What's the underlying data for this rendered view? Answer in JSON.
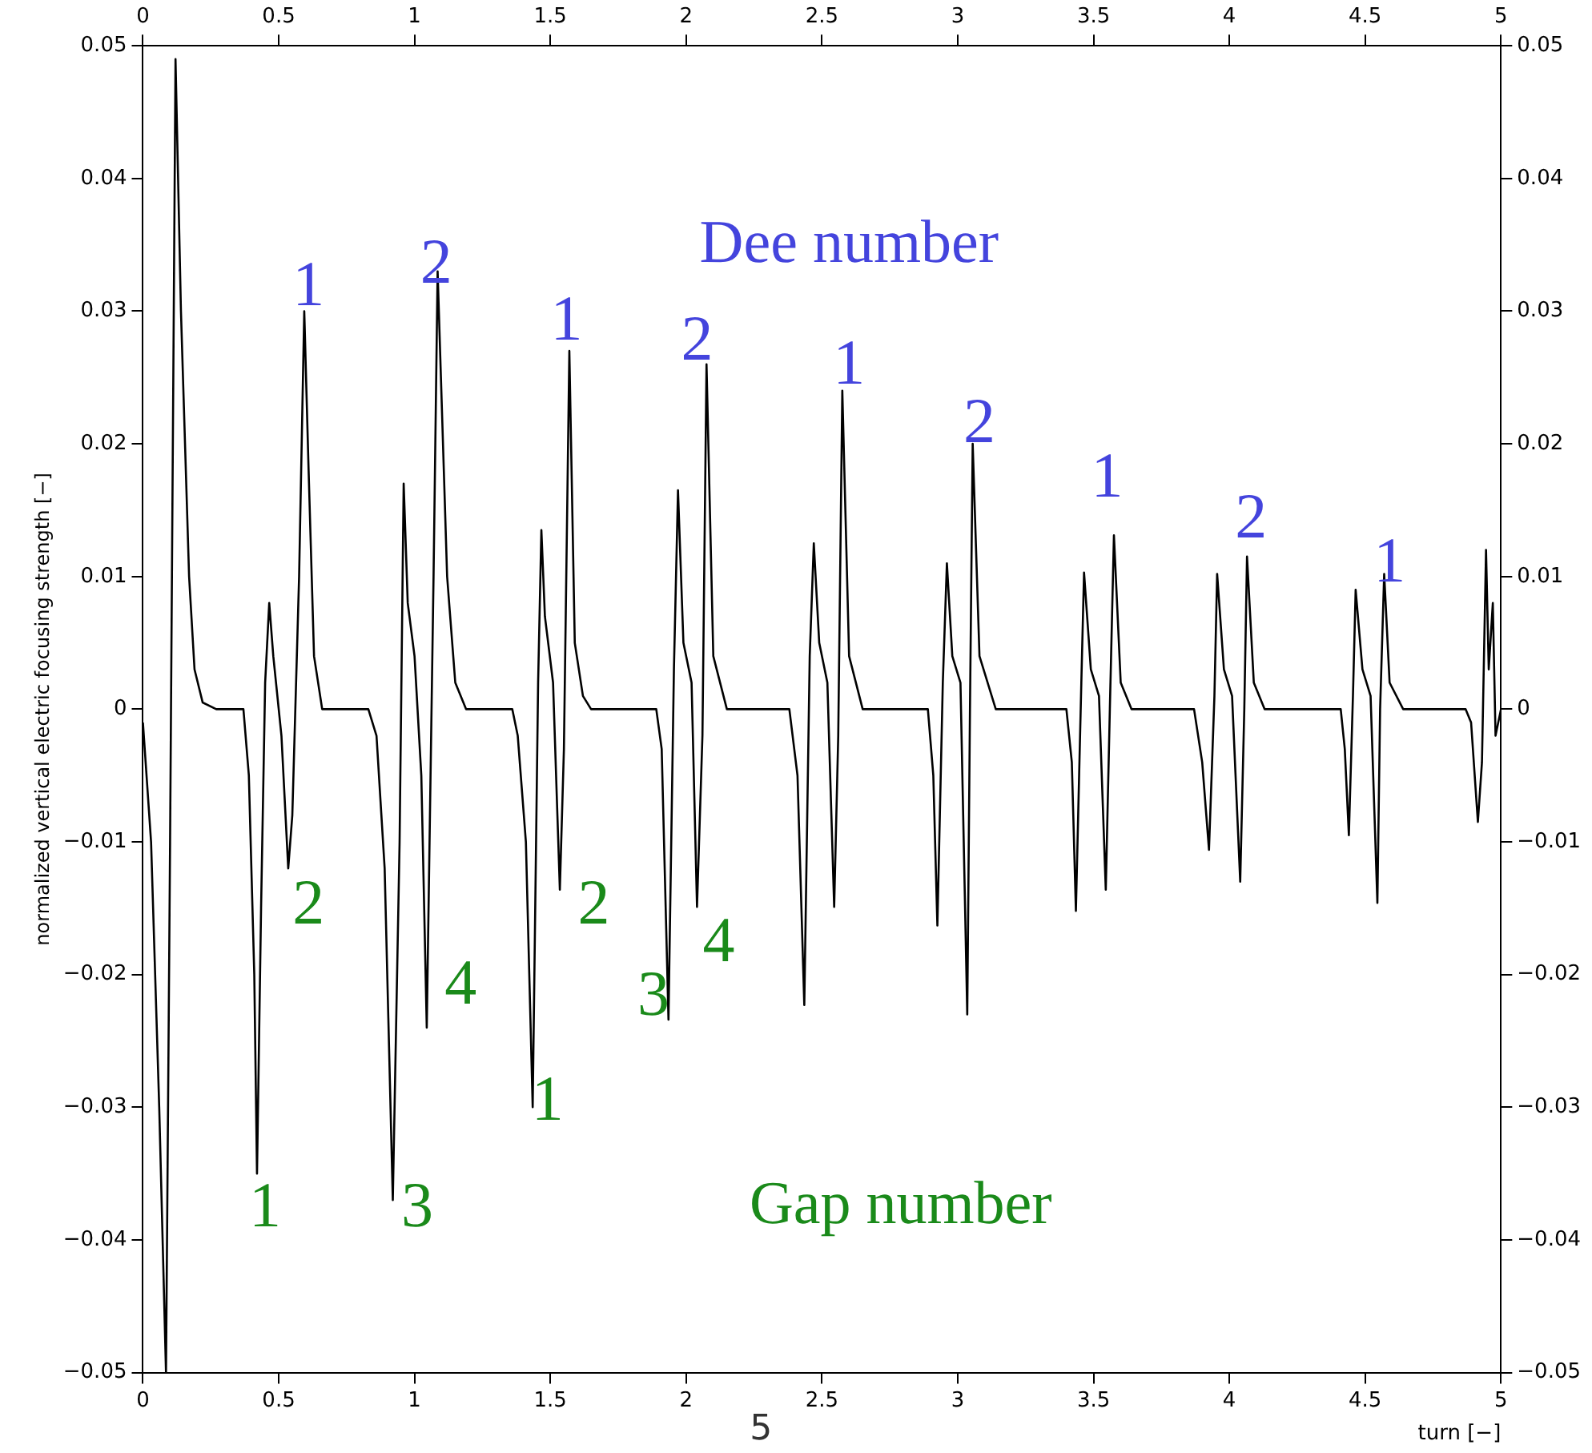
{
  "chart_data": {
    "type": "line",
    "xlabel": "turn [−]",
    "ylabel": "normalized vertical electric focusing strength [−]",
    "xlim": [
      0,
      5
    ],
    "xticks": [
      0,
      0.5,
      1,
      1.5,
      2,
      2.5,
      3,
      3.5,
      4,
      4.5,
      5
    ],
    "x2lim": [
      0,
      5
    ],
    "x2ticks": [
      0,
      0.5,
      1,
      1.5,
      2,
      2.5,
      3,
      3.5,
      4,
      4.5,
      5
    ],
    "ylim": [
      -0.05,
      0.05
    ],
    "yticks": [
      {
        "value": -0.05,
        "label": "−0.05"
      },
      {
        "value": -0.04,
        "label": "−0.04"
      },
      {
        "value": -0.03,
        "label": "−0.03"
      },
      {
        "value": -0.02,
        "label": "−0.02"
      },
      {
        "value": -0.01,
        "label": "−0.01"
      },
      0,
      0.01,
      0.02,
      0.03,
      0.04,
      0.05
    ],
    "y2lim": [
      -0.05,
      0.05
    ],
    "y2ticks": [
      {
        "value": -0.05,
        "label": "−0.05"
      },
      {
        "value": -0.04,
        "label": "−0.04"
      },
      {
        "value": -0.03,
        "label": "−0.03"
      },
      {
        "value": -0.02,
        "label": "−0.02"
      },
      {
        "value": -0.01,
        "label": "−0.01"
      },
      0,
      0.01,
      0.02,
      0.03,
      0.04,
      0.05
    ],
    "grid": false,
    "marker": "none",
    "line_style": "solid",
    "series": [
      {
        "color": "#000000",
        "x": [
          0,
          0.03,
          0.06,
          0.085,
          0.1,
          0.12,
          0.14,
          0.17,
          0.19,
          0.22,
          0.27,
          0.37,
          0.39,
          0.41,
          0.42,
          0.435,
          0.45,
          0.465,
          0.48,
          0.51,
          0.535,
          0.55,
          0.575,
          0.594,
          0.61,
          0.63,
          0.66,
          0.83,
          0.86,
          0.89,
          0.92,
          0.945,
          0.96,
          0.975,
          1.0,
          1.025,
          1.045,
          1.07,
          1.085,
          1.12,
          1.15,
          1.19,
          1.36,
          1.38,
          1.41,
          1.435,
          1.455,
          1.467,
          1.48,
          1.51,
          1.535,
          1.55,
          1.57,
          1.59,
          1.62,
          1.65,
          1.89,
          1.91,
          1.935,
          1.955,
          1.97,
          1.99,
          2.02,
          2.04,
          2.06,
          2.075,
          2.1,
          2.15,
          2.38,
          2.41,
          2.435,
          2.455,
          2.47,
          2.49,
          2.52,
          2.545,
          2.56,
          2.575,
          2.6,
          2.65,
          2.89,
          2.91,
          2.925,
          2.945,
          2.96,
          2.98,
          3.01,
          3.035,
          3.045,
          3.055,
          3.08,
          3.14,
          3.4,
          3.42,
          3.435,
          3.455,
          3.465,
          3.49,
          3.52,
          3.545,
          3.56,
          3.575,
          3.6,
          3.64,
          3.87,
          3.9,
          3.925,
          3.945,
          3.955,
          3.98,
          4.01,
          4.04,
          4.055,
          4.065,
          4.09,
          4.13,
          4.41,
          4.425,
          4.44,
          4.455,
          4.465,
          4.49,
          4.52,
          4.545,
          4.555,
          4.57,
          4.59,
          4.64,
          4.87,
          4.89,
          4.915,
          4.93,
          4.945,
          4.955,
          4.97,
          4.98,
          5.0
        ],
        "values": [
          -0.001,
          -0.01,
          -0.03,
          -0.05,
          -0.01,
          0.049,
          0.03,
          0.01,
          0.003,
          0.0005,
          0,
          0,
          -0.005,
          -0.02,
          -0.035,
          -0.015,
          0.002,
          0.008,
          0.004,
          -0.002,
          -0.012,
          -0.008,
          0.01,
          0.03,
          0.018,
          0.004,
          0,
          0,
          -0.002,
          -0.012,
          -0.037,
          -0.01,
          0.017,
          0.008,
          0.004,
          -0.005,
          -0.024,
          0.01,
          0.033,
          0.01,
          0.002,
          0,
          0,
          -0.002,
          -0.01,
          -0.03,
          0.002,
          0.0135,
          0.007,
          0.002,
          -0.0136,
          -0.003,
          0.027,
          0.005,
          0.001,
          0,
          0,
          -0.003,
          -0.0234,
          0.003,
          0.0165,
          0.005,
          0.002,
          -0.0149,
          -0.002,
          0.026,
          0.004,
          0,
          0,
          -0.005,
          -0.0223,
          0.004,
          0.0125,
          0.005,
          0.002,
          -0.0149,
          -0.002,
          0.024,
          0.004,
          0,
          0,
          -0.005,
          -0.0163,
          0.002,
          0.011,
          0.004,
          0.002,
          -0.023,
          0,
          0.02,
          0.004,
          0,
          0,
          -0.004,
          -0.0152,
          0.002,
          0.0103,
          0.003,
          0.001,
          -0.0136,
          0,
          0.0131,
          0.002,
          0,
          0,
          -0.004,
          -0.0106,
          0.001,
          0.0102,
          0.003,
          0.001,
          -0.013,
          0,
          0.0115,
          0.002,
          0,
          0,
          -0.003,
          -0.0095,
          0.001,
          0.009,
          0.003,
          0.001,
          -0.0146,
          0,
          0.0102,
          0.002,
          0,
          0,
          -0.001,
          -0.0085,
          -0.004,
          0.012,
          0.003,
          0.008,
          -0.002,
          0
        ]
      }
    ],
    "annotations": [
      "Dee number",
      "Gap number",
      "1",
      "2",
      "1",
      "2",
      "1",
      "2",
      "1",
      "2",
      "1",
      "1",
      "2",
      "3",
      "4",
      "1",
      "2",
      "3",
      "4",
      "5"
    ]
  }
}
